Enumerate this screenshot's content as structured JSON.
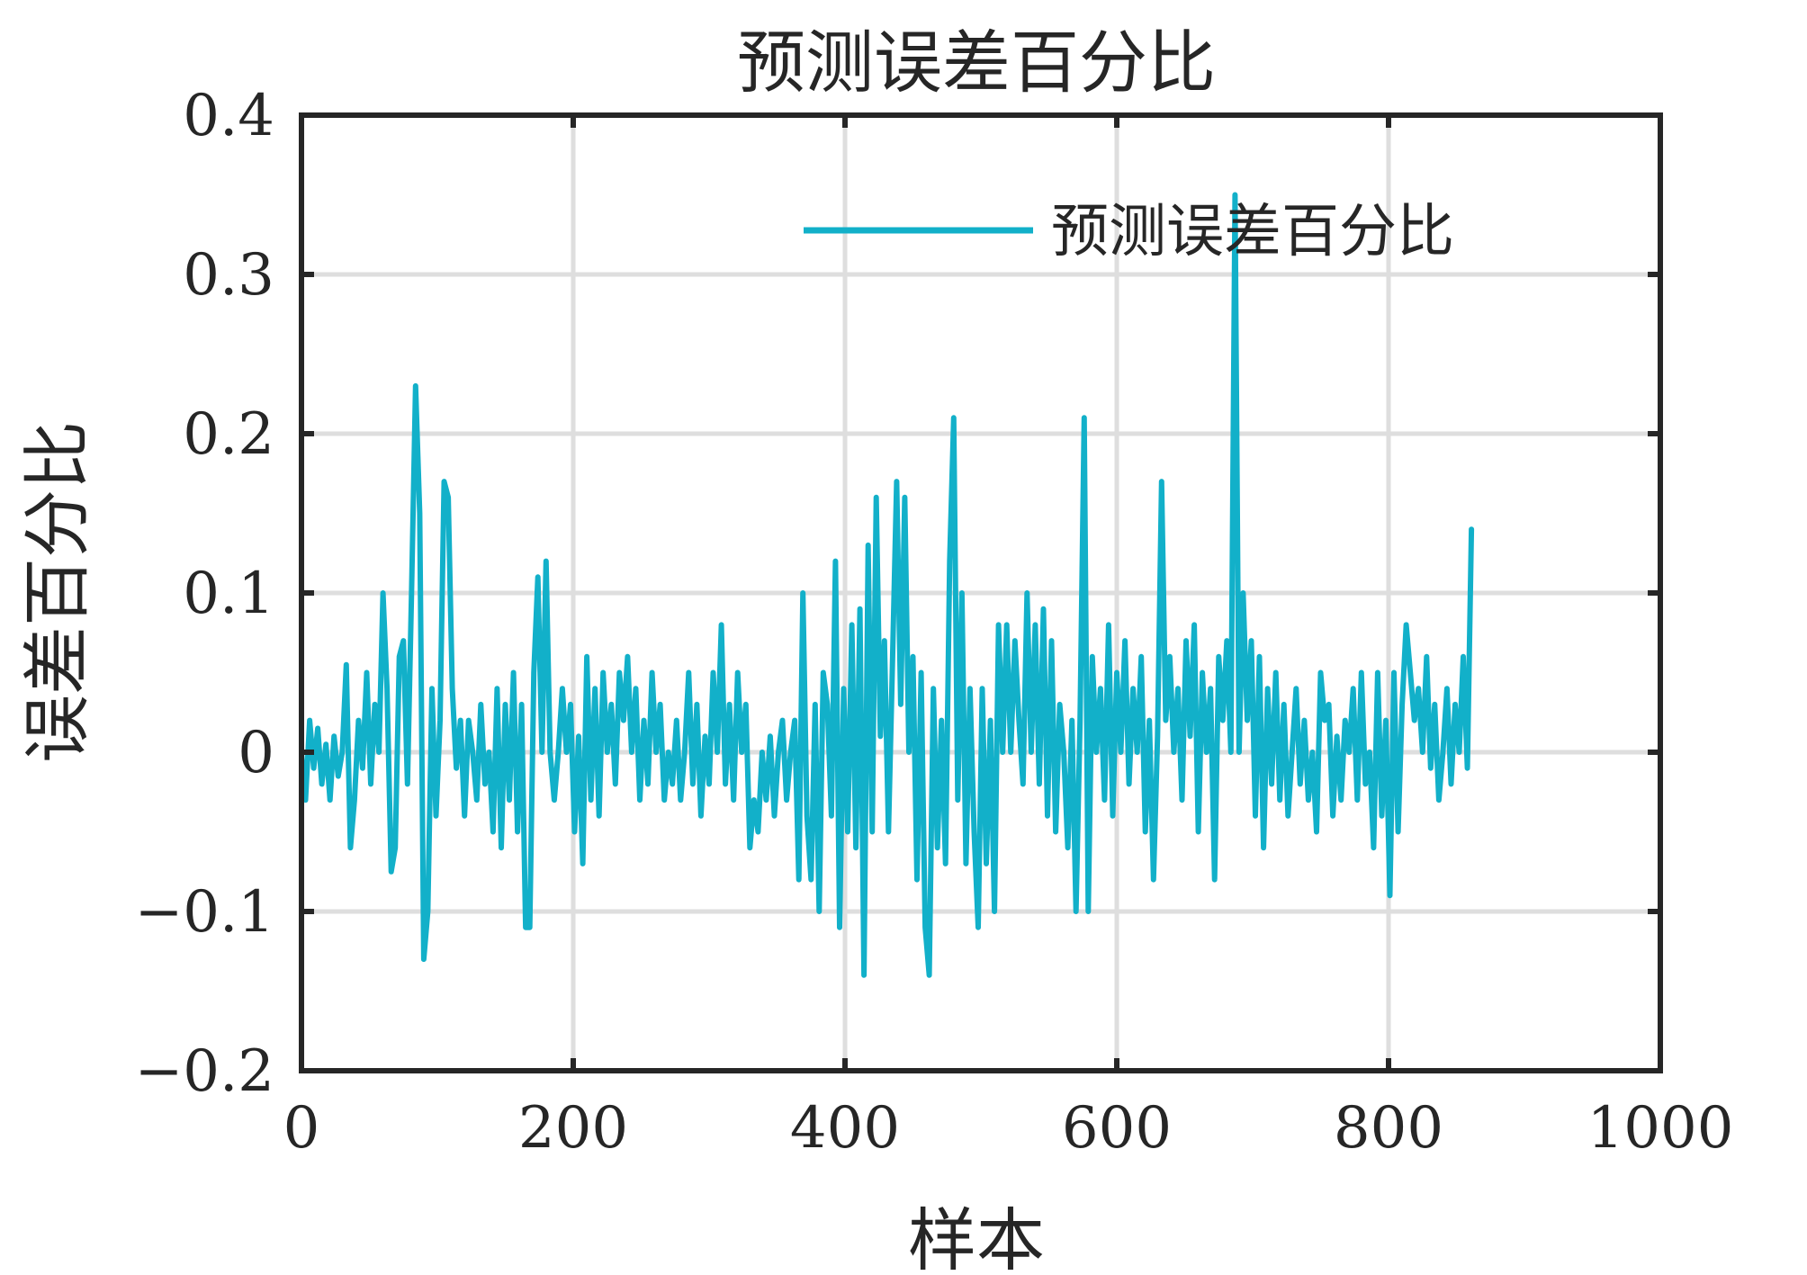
{
  "chart_data": {
    "type": "line",
    "title": "预测误差百分比",
    "xlabel": "样本",
    "ylabel": "误差百分比",
    "xlim": [
      0,
      1000
    ],
    "ylim": [
      -0.2,
      0.4
    ],
    "xticks": [
      0,
      200,
      400,
      600,
      800,
      1000
    ],
    "xtick_labels": [
      "0",
      "200",
      "400",
      "600",
      "800",
      "1000"
    ],
    "yticks": [
      -0.2,
      -0.1,
      0,
      0.1,
      0.2,
      0.3,
      0.4
    ],
    "ytick_labels": [
      "−0.2",
      "−0.1",
      "0",
      "0.1",
      "0.2",
      "0.3",
      "0.4"
    ],
    "grid": true,
    "legend_position": "top-right",
    "series": [
      {
        "name": "预测误差百分比",
        "color": "#12B0C9",
        "points": [
          [
            0,
            0
          ],
          [
            3,
            -0.03
          ],
          [
            6,
            0.02
          ],
          [
            9,
            -0.01
          ],
          [
            12,
            0.015
          ],
          [
            15,
            -0.02
          ],
          [
            18,
            0.005
          ],
          [
            21,
            -0.03
          ],
          [
            24,
            0.01
          ],
          [
            27,
            -0.015
          ],
          [
            30,
            0.0
          ],
          [
            33,
            0.055
          ],
          [
            36,
            -0.06
          ],
          [
            39,
            -0.03
          ],
          [
            42,
            0.02
          ],
          [
            45,
            -0.01
          ],
          [
            48,
            0.05
          ],
          [
            51,
            -0.02
          ],
          [
            54,
            0.03
          ],
          [
            57,
            0.0
          ],
          [
            60,
            0.1
          ],
          [
            63,
            0.04
          ],
          [
            66,
            -0.075
          ],
          [
            69,
            -0.06
          ],
          [
            72,
            0.06
          ],
          [
            75,
            0.07
          ],
          [
            78,
            -0.02
          ],
          [
            81,
            0.1
          ],
          [
            84,
            0.23
          ],
          [
            87,
            0.15
          ],
          [
            90,
            -0.13
          ],
          [
            93,
            -0.1
          ],
          [
            96,
            0.04
          ],
          [
            99,
            -0.04
          ],
          [
            102,
            0.02
          ],
          [
            105,
            0.17
          ],
          [
            108,
            0.16
          ],
          [
            111,
            0.04
          ],
          [
            114,
            -0.01
          ],
          [
            117,
            0.02
          ],
          [
            120,
            -0.04
          ],
          [
            123,
            0.02
          ],
          [
            126,
            0.0
          ],
          [
            129,
            -0.03
          ],
          [
            132,
            0.03
          ],
          [
            135,
            -0.02
          ],
          [
            138,
            0.0
          ],
          [
            141,
            -0.05
          ],
          [
            144,
            0.04
          ],
          [
            147,
            -0.06
          ],
          [
            150,
            0.03
          ],
          [
            153,
            -0.03
          ],
          [
            156,
            0.05
          ],
          [
            159,
            -0.05
          ],
          [
            162,
            0.03
          ],
          [
            165,
            -0.11
          ],
          [
            168,
            -0.11
          ],
          [
            171,
            0.05
          ],
          [
            174,
            0.11
          ],
          [
            177,
            0.0
          ],
          [
            180,
            0.12
          ],
          [
            183,
            0.0
          ],
          [
            186,
            -0.03
          ],
          [
            189,
            0.0
          ],
          [
            192,
            0.04
          ],
          [
            195,
            0.0
          ],
          [
            198,
            0.03
          ],
          [
            201,
            -0.05
          ],
          [
            204,
            0.01
          ],
          [
            207,
            -0.07
          ],
          [
            210,
            0.06
          ],
          [
            213,
            -0.03
          ],
          [
            216,
            0.04
          ],
          [
            219,
            -0.04
          ],
          [
            222,
            0.05
          ],
          [
            225,
            0.0
          ],
          [
            228,
            0.03
          ],
          [
            231,
            -0.02
          ],
          [
            234,
            0.05
          ],
          [
            237,
            0.02
          ],
          [
            240,
            0.06
          ],
          [
            243,
            0.0
          ],
          [
            246,
            0.04
          ],
          [
            249,
            -0.03
          ],
          [
            252,
            0.02
          ],
          [
            255,
            -0.02
          ],
          [
            258,
            0.05
          ],
          [
            261,
            0.0
          ],
          [
            264,
            0.03
          ],
          [
            267,
            -0.03
          ],
          [
            270,
            0.0
          ],
          [
            273,
            -0.02
          ],
          [
            276,
            0.02
          ],
          [
            279,
            -0.03
          ],
          [
            282,
            0.0
          ],
          [
            285,
            0.05
          ],
          [
            288,
            -0.02
          ],
          [
            291,
            0.03
          ],
          [
            294,
            -0.04
          ],
          [
            297,
            0.01
          ],
          [
            300,
            -0.02
          ],
          [
            303,
            0.05
          ],
          [
            306,
            0.0
          ],
          [
            309,
            0.08
          ],
          [
            312,
            -0.02
          ],
          [
            315,
            0.03
          ],
          [
            318,
            -0.03
          ],
          [
            321,
            0.05
          ],
          [
            324,
            0.0
          ],
          [
            327,
            0.03
          ],
          [
            330,
            -0.06
          ],
          [
            333,
            -0.03
          ],
          [
            336,
            -0.05
          ],
          [
            339,
            0.0
          ],
          [
            342,
            -0.03
          ],
          [
            345,
            0.01
          ],
          [
            348,
            -0.04
          ],
          [
            351,
            0.0
          ],
          [
            354,
            0.02
          ],
          [
            357,
            -0.03
          ],
          [
            360,
            0.0
          ],
          [
            363,
            0.02
          ],
          [
            366,
            -0.08
          ],
          [
            369,
            0.1
          ],
          [
            372,
            -0.04
          ],
          [
            375,
            -0.08
          ],
          [
            378,
            0.03
          ],
          [
            381,
            -0.1
          ],
          [
            384,
            0.05
          ],
          [
            387,
            0.03
          ],
          [
            390,
            -0.04
          ],
          [
            393,
            0.12
          ],
          [
            396,
            -0.11
          ],
          [
            399,
            0.04
          ],
          [
            402,
            -0.05
          ],
          [
            405,
            0.08
          ],
          [
            408,
            -0.06
          ],
          [
            411,
            0.09
          ],
          [
            414,
            -0.14
          ],
          [
            417,
            0.13
          ],
          [
            420,
            -0.05
          ],
          [
            423,
            0.16
          ],
          [
            426,
            0.01
          ],
          [
            429,
            0.07
          ],
          [
            432,
            -0.05
          ],
          [
            435,
            0.06
          ],
          [
            438,
            0.17
          ],
          [
            441,
            0.03
          ],
          [
            444,
            0.16
          ],
          [
            447,
            0.0
          ],
          [
            450,
            0.06
          ],
          [
            453,
            -0.08
          ],
          [
            456,
            0.05
          ],
          [
            459,
            -0.11
          ],
          [
            462,
            -0.14
          ],
          [
            465,
            0.04
          ],
          [
            468,
            -0.06
          ],
          [
            471,
            0.02
          ],
          [
            474,
            -0.07
          ],
          [
            477,
            0.12
          ],
          [
            480,
            0.21
          ],
          [
            483,
            -0.03
          ],
          [
            486,
            0.1
          ],
          [
            489,
            -0.07
          ],
          [
            492,
            0.04
          ],
          [
            495,
            -0.05
          ],
          [
            498,
            -0.11
          ],
          [
            501,
            0.04
          ],
          [
            504,
            -0.07
          ],
          [
            507,
            0.02
          ],
          [
            510,
            -0.1
          ],
          [
            513,
            0.08
          ],
          [
            516,
            0.0
          ],
          [
            519,
            0.08
          ],
          [
            522,
            0.0
          ],
          [
            525,
            0.07
          ],
          [
            528,
            0.02
          ],
          [
            531,
            -0.02
          ],
          [
            534,
            0.1
          ],
          [
            537,
            0.0
          ],
          [
            540,
            0.08
          ],
          [
            543,
            -0.02
          ],
          [
            546,
            0.09
          ],
          [
            549,
            -0.04
          ],
          [
            552,
            0.07
          ],
          [
            555,
            -0.05
          ],
          [
            558,
            0.03
          ],
          [
            561,
            0.0
          ],
          [
            564,
            -0.06
          ],
          [
            567,
            0.02
          ],
          [
            570,
            -0.1
          ],
          [
            573,
            0.02
          ],
          [
            576,
            0.21
          ],
          [
            579,
            -0.1
          ],
          [
            582,
            0.06
          ],
          [
            585,
            0.0
          ],
          [
            588,
            0.04
          ],
          [
            591,
            -0.03
          ],
          [
            594,
            0.08
          ],
          [
            597,
            -0.04
          ],
          [
            600,
            0.05
          ],
          [
            603,
            0.0
          ],
          [
            606,
            0.07
          ],
          [
            609,
            -0.02
          ],
          [
            612,
            0.04
          ],
          [
            615,
            0.0
          ],
          [
            618,
            0.06
          ],
          [
            621,
            -0.05
          ],
          [
            624,
            0.02
          ],
          [
            627,
            -0.08
          ],
          [
            630,
            0.01
          ],
          [
            633,
            0.17
          ],
          [
            636,
            0.02
          ],
          [
            639,
            0.06
          ],
          [
            642,
            0.0
          ],
          [
            645,
            0.04
          ],
          [
            648,
            -0.03
          ],
          [
            651,
            0.07
          ],
          [
            654,
            0.01
          ],
          [
            657,
            0.08
          ],
          [
            660,
            -0.05
          ],
          [
            663,
            0.05
          ],
          [
            666,
            0.0
          ],
          [
            669,
            0.04
          ],
          [
            672,
            -0.08
          ],
          [
            675,
            0.06
          ],
          [
            678,
            0.02
          ],
          [
            681,
            0.07
          ],
          [
            684,
            0.0
          ],
          [
            687,
            0.35
          ],
          [
            690,
            0.0
          ],
          [
            693,
            0.1
          ],
          [
            696,
            0.02
          ],
          [
            699,
            0.07
          ],
          [
            702,
            -0.04
          ],
          [
            705,
            0.06
          ],
          [
            708,
            -0.06
          ],
          [
            711,
            0.04
          ],
          [
            714,
            -0.02
          ],
          [
            717,
            0.05
          ],
          [
            720,
            -0.03
          ],
          [
            723,
            0.03
          ],
          [
            726,
            -0.04
          ],
          [
            729,
            0.0
          ],
          [
            732,
            0.04
          ],
          [
            735,
            -0.02
          ],
          [
            738,
            0.02
          ],
          [
            741,
            -0.03
          ],
          [
            744,
            0.0
          ],
          [
            747,
            -0.05
          ],
          [
            750,
            0.05
          ],
          [
            753,
            0.02
          ],
          [
            756,
            0.03
          ],
          [
            759,
            -0.04
          ],
          [
            762,
            0.01
          ],
          [
            765,
            -0.03
          ],
          [
            768,
            0.02
          ],
          [
            771,
            0.0
          ],
          [
            774,
            0.04
          ],
          [
            777,
            -0.03
          ],
          [
            780,
            0.05
          ],
          [
            783,
            -0.02
          ],
          [
            786,
            0.0
          ],
          [
            789,
            -0.06
          ],
          [
            792,
            0.05
          ],
          [
            795,
            -0.04
          ],
          [
            798,
            0.02
          ],
          [
            801,
            -0.09
          ],
          [
            804,
            0.05
          ],
          [
            807,
            -0.05
          ],
          [
            810,
            0.03
          ],
          [
            813,
            0.08
          ],
          [
            816,
            0.05
          ],
          [
            819,
            0.02
          ],
          [
            822,
            0.04
          ],
          [
            825,
            0.0
          ],
          [
            828,
            0.06
          ],
          [
            831,
            -0.01
          ],
          [
            834,
            0.03
          ],
          [
            837,
            -0.03
          ],
          [
            840,
            0.0
          ],
          [
            843,
            0.04
          ],
          [
            846,
            -0.02
          ],
          [
            849,
            0.03
          ],
          [
            852,
            0.0
          ],
          [
            855,
            0.06
          ],
          [
            858,
            -0.01
          ],
          [
            861,
            0.14
          ]
        ]
      }
    ]
  }
}
